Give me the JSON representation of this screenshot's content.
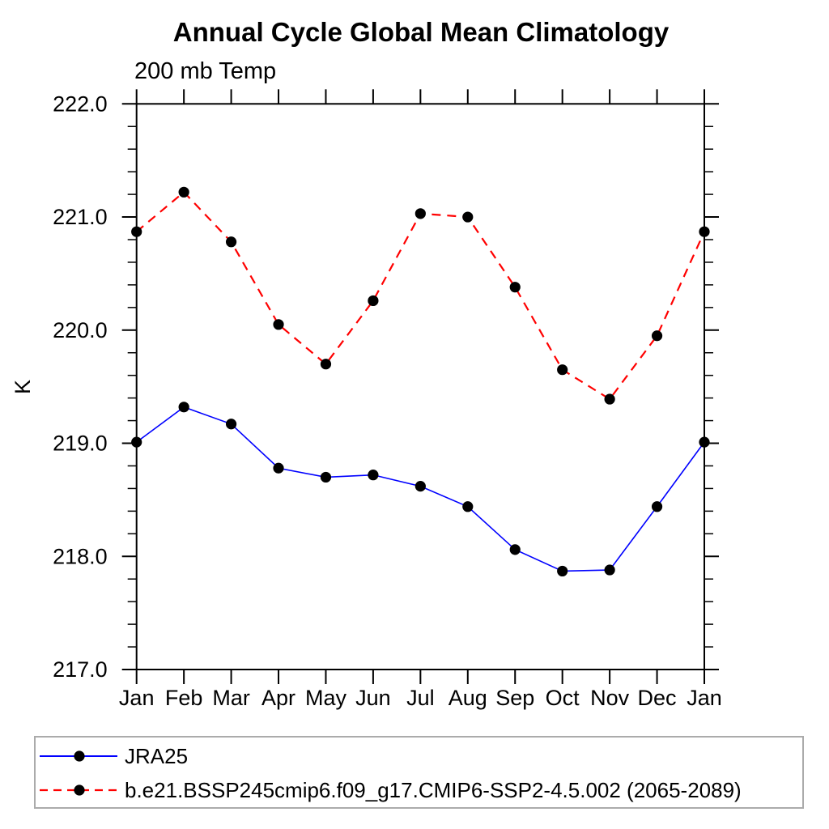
{
  "title": "Annual Cycle Global Mean Climatology",
  "subtitle": "200 mb Temp",
  "ylabel": "K",
  "chart_data": {
    "type": "line",
    "x_categories": [
      "Jan",
      "Feb",
      "Mar",
      "Apr",
      "May",
      "Jun",
      "Jul",
      "Aug",
      "Sep",
      "Oct",
      "Nov",
      "Dec",
      "Jan"
    ],
    "series": [
      {
        "name": "JRA25",
        "line_color": "#0000ff",
        "line_style": "solid",
        "line_width": 1.6,
        "marker": "filled-circle",
        "marker_color": "#000000",
        "values": [
          219.01,
          219.32,
          219.17,
          218.78,
          218.7,
          218.72,
          218.62,
          218.44,
          218.06,
          217.87,
          217.88,
          218.44,
          219.01
        ]
      },
      {
        "name": "b.e21.BSSP245cmip6.f09_g17.CMIP6-SSP2-4.5.002 (2065-2089)",
        "line_color": "#ff0000",
        "line_style": "dashed",
        "line_width": 2.2,
        "marker": "filled-circle",
        "marker_color": "#000000",
        "values": [
          220.87,
          221.22,
          220.78,
          220.05,
          219.7,
          220.26,
          221.03,
          221.0,
          220.38,
          219.65,
          219.39,
          219.95,
          220.87
        ]
      }
    ],
    "ylim": [
      217.0,
      222.0
    ],
    "y_major_tick_labels": [
      "217.0",
      "218.0",
      "219.0",
      "220.0",
      "221.0",
      "222.0"
    ],
    "y_major_step": 1.0,
    "y_minor_step": 0.2,
    "grid": false,
    "frame_color": "#000000",
    "legend_position": "bottom-left-box"
  }
}
